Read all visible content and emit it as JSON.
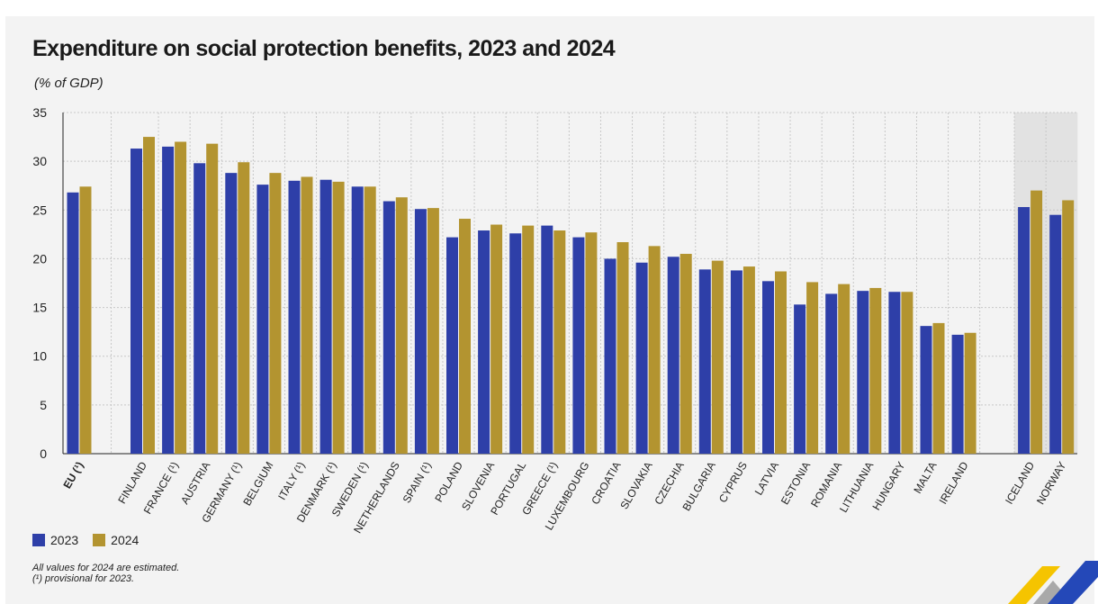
{
  "title": "Expenditure on social protection benefits, 2023 and 2024",
  "subtitle": "(% of GDP)",
  "colors": {
    "s2023": "#2e3fa8",
    "s2024": "#b39430",
    "shade": "#e2e2e2",
    "grid": "#c8c8c8"
  },
  "legend": {
    "s2023": "2023",
    "s2024": "2024"
  },
  "notes": {
    "line1": "All values for 2024 are estimated.",
    "line2": "(¹) provisional for 2023."
  },
  "chart_data": {
    "type": "bar",
    "ylim": [
      0,
      35
    ],
    "yticks": [
      0,
      5,
      10,
      15,
      20,
      25,
      30,
      35
    ],
    "grid": true,
    "legend_position": "bottom-left",
    "categories": [
      "EU (¹)",
      "FINLAND",
      "FRANCE (¹)",
      "AUSTRIA",
      "GERMANY (¹)",
      "BELGIUM",
      "ITALY (¹)",
      "DENMARK (¹)",
      "SWEDEN (¹)",
      "NETHERLANDS",
      "SPAIN (¹)",
      "POLAND",
      "SLOVENIA",
      "PORTUGAL",
      "GREECE (¹)",
      "LUXEMBOURG",
      "CROATIA",
      "SLOVAKIA",
      "CZECHIA",
      "BULGARIA",
      "CYPRUS",
      "LATVIA",
      "ESTONIA",
      "ROMANIA",
      "LITHUANIA",
      "HUNGARY",
      "MALTA",
      "IRELAND",
      "ICELAND",
      "NORWAY"
    ],
    "series": [
      {
        "name": "2023",
        "values": [
          26.8,
          31.3,
          31.5,
          29.8,
          28.8,
          27.6,
          28.0,
          28.1,
          27.4,
          25.9,
          25.1,
          22.2,
          22.9,
          22.6,
          23.4,
          22.2,
          20.0,
          19.6,
          20.2,
          18.9,
          18.8,
          17.7,
          15.3,
          16.4,
          16.7,
          16.6,
          13.1,
          12.2,
          25.3,
          24.5
        ]
      },
      {
        "name": "2024",
        "values": [
          27.4,
          32.5,
          32.0,
          31.8,
          29.9,
          28.8,
          28.4,
          27.9,
          27.4,
          26.3,
          25.2,
          24.1,
          23.5,
          23.4,
          22.9,
          22.7,
          21.7,
          21.3,
          20.5,
          19.8,
          19.2,
          18.7,
          17.6,
          17.4,
          17.0,
          16.6,
          13.4,
          12.4,
          27.0,
          26.0
        ]
      }
    ]
  }
}
